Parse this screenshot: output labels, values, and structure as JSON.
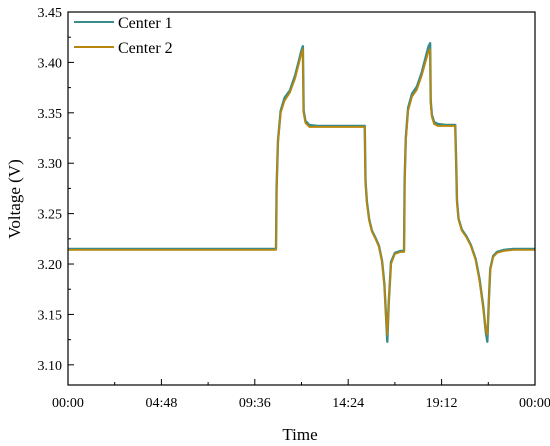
{
  "chart_data": {
    "type": "line",
    "xlabel": "Time",
    "ylabel": "Voltage (V)",
    "xlim": [
      0,
      24
    ],
    "ylim": [
      3.08,
      3.45
    ],
    "x_unit": "hours",
    "x_ticks": [
      {
        "value": 0,
        "label": "00:00"
      },
      {
        "value": 4.8,
        "label": "04:48"
      },
      {
        "value": 9.6,
        "label": "09:36"
      },
      {
        "value": 14.4,
        "label": "14:24"
      },
      {
        "value": 19.2,
        "label": "19:12"
      },
      {
        "value": 24,
        "label": "00:00"
      }
    ],
    "y_ticks": [
      {
        "value": 3.1,
        "label": "3.10"
      },
      {
        "value": 3.15,
        "label": "3.15"
      },
      {
        "value": 3.2,
        "label": "3.20"
      },
      {
        "value": 3.25,
        "label": "3.25"
      },
      {
        "value": 3.3,
        "label": "3.30"
      },
      {
        "value": 3.35,
        "label": "3.35"
      },
      {
        "value": 3.4,
        "label": "3.40"
      },
      {
        "value": 3.45,
        "label": "3.45"
      }
    ],
    "legend_position": "top-left",
    "grid": false,
    "series": [
      {
        "name": "Center 1",
        "color": "#3a8c8c",
        "x": [
          0.0,
          10.69,
          10.72,
          10.79,
          10.93,
          11.13,
          11.4,
          11.67,
          11.87,
          12.0,
          12.07,
          12.11,
          12.2,
          12.4,
          12.8,
          13.6,
          14.4,
          15.25,
          15.29,
          15.36,
          15.48,
          15.62,
          15.8,
          15.98,
          16.14,
          16.26,
          16.34,
          16.41,
          16.48,
          16.6,
          16.8,
          17.1,
          17.27,
          17.3,
          17.36,
          17.48,
          17.68,
          17.93,
          18.18,
          18.38,
          18.53,
          18.61,
          18.64,
          18.7,
          18.81,
          19.0,
          19.4,
          19.9,
          19.95,
          19.99,
          20.07,
          20.24,
          20.46,
          20.7,
          20.95,
          21.15,
          21.34,
          21.47,
          21.55,
          21.62,
          21.7,
          21.85,
          22.05,
          22.4,
          22.9,
          24.0
        ],
        "y": [
          3.215,
          3.215,
          3.275,
          3.322,
          3.352,
          3.365,
          3.372,
          3.387,
          3.402,
          3.412,
          3.416,
          3.352,
          3.342,
          3.338,
          3.337,
          3.337,
          3.337,
          3.337,
          3.282,
          3.262,
          3.244,
          3.233,
          3.226,
          3.218,
          3.203,
          3.18,
          3.15,
          3.123,
          3.16,
          3.202,
          3.211,
          3.213,
          3.213,
          3.283,
          3.325,
          3.355,
          3.369,
          3.376,
          3.39,
          3.405,
          3.416,
          3.419,
          3.362,
          3.348,
          3.341,
          3.339,
          3.338,
          3.338,
          3.3,
          3.263,
          3.245,
          3.234,
          3.228,
          3.219,
          3.205,
          3.185,
          3.158,
          3.133,
          3.123,
          3.16,
          3.195,
          3.208,
          3.212,
          3.214,
          3.215,
          3.215
        ]
      },
      {
        "name": "Center 2",
        "color": "#b8860b",
        "x": [
          0.0,
          10.69,
          10.72,
          10.79,
          10.93,
          11.13,
          11.4,
          11.67,
          11.87,
          12.0,
          12.07,
          12.11,
          12.2,
          12.4,
          12.8,
          13.6,
          14.4,
          15.25,
          15.29,
          15.36,
          15.48,
          15.62,
          15.8,
          15.98,
          16.14,
          16.26,
          16.34,
          16.41,
          16.48,
          16.6,
          16.8,
          17.1,
          17.27,
          17.3,
          17.36,
          17.48,
          17.68,
          17.93,
          18.18,
          18.38,
          18.53,
          18.61,
          18.64,
          18.7,
          18.81,
          19.0,
          19.4,
          19.9,
          19.95,
          19.99,
          20.07,
          20.24,
          20.46,
          20.7,
          20.95,
          21.15,
          21.34,
          21.47,
          21.55,
          21.62,
          21.7,
          21.85,
          22.05,
          22.4,
          22.9,
          24.0
        ],
        "y": [
          3.214,
          3.214,
          3.273,
          3.32,
          3.35,
          3.362,
          3.37,
          3.384,
          3.399,
          3.409,
          3.413,
          3.35,
          3.34,
          3.336,
          3.336,
          3.336,
          3.336,
          3.336,
          3.28,
          3.26,
          3.243,
          3.232,
          3.225,
          3.217,
          3.202,
          3.178,
          3.15,
          3.13,
          3.16,
          3.2,
          3.21,
          3.212,
          3.212,
          3.28,
          3.322,
          3.352,
          3.366,
          3.373,
          3.387,
          3.401,
          3.411,
          3.413,
          3.36,
          3.346,
          3.339,
          3.337,
          3.337,
          3.337,
          3.298,
          3.261,
          3.244,
          3.233,
          3.227,
          3.218,
          3.204,
          3.183,
          3.156,
          3.135,
          3.13,
          3.16,
          3.194,
          3.207,
          3.211,
          3.213,
          3.214,
          3.214
        ]
      }
    ]
  }
}
